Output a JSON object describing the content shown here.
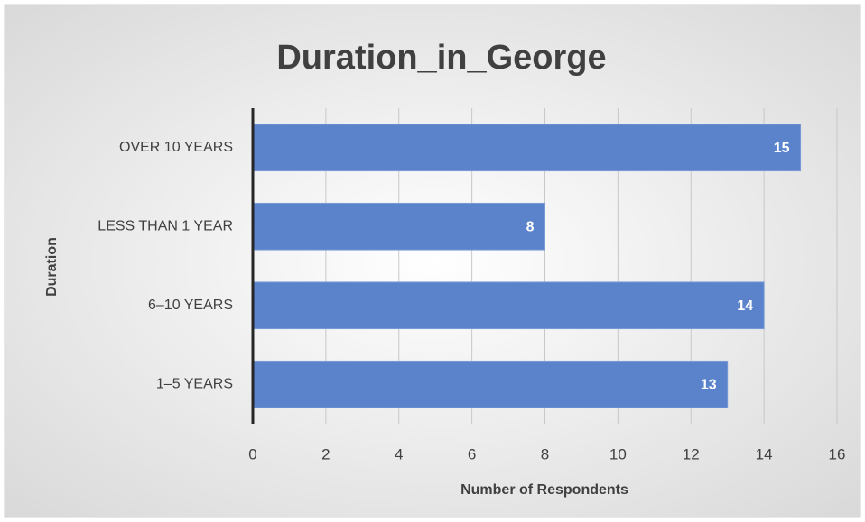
{
  "chart_data": {
    "type": "barh",
    "title": "Duration_in_George",
    "x_label": "Number of Respondents",
    "y_label": "Duration",
    "categories": [
      "OVER 10 YEARS",
      "LESS THAN 1 YEAR",
      "6–10 YEARS",
      "1–5 YEARS"
    ],
    "values": [
      15,
      8,
      14,
      13
    ],
    "color": "#5b83cc",
    "xlim": [
      0,
      16
    ],
    "xticks": [
      0,
      2,
      4,
      6,
      8,
      10,
      12,
      14,
      16
    ],
    "grid": true,
    "data_labels": true
  }
}
